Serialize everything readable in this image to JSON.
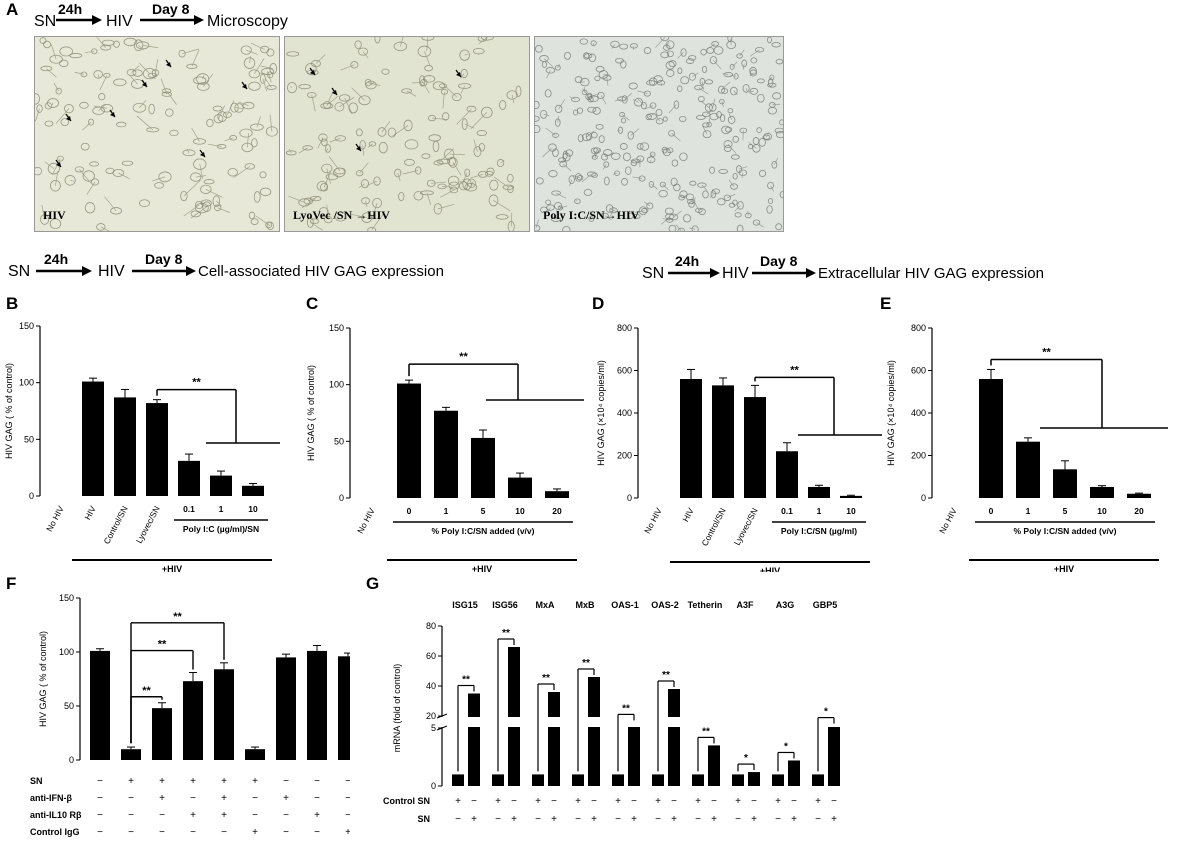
{
  "panel_a": {
    "letter": "A",
    "flow": {
      "sn": "SN",
      "t1": "24h",
      "hiv": "HIV",
      "t2": "Day 8",
      "end": "Microscopy"
    },
    "images": [
      {
        "caption": "HIV",
        "tint": "#e7e8d8"
      },
      {
        "caption": "LyoVec /SN",
        "caption_end": "HIV",
        "tint": "#e2e4d2"
      },
      {
        "caption": "Poly I:C/SN",
        "caption_end": "HIV",
        "tint": "#dfe3de"
      }
    ]
  },
  "flow_cell": {
    "sn": "SN",
    "t1": "24h",
    "hiv": "HIV",
    "t2": "Day 8",
    "end": "Cell-associated HIV GAG expression"
  },
  "flow_extra": {
    "sn": "SN",
    "t1": "24h",
    "hiv": "HIV",
    "t2": "Day 8",
    "end": "Extracellular HIV GAG expression"
  },
  "chart_data": [
    {
      "panel": "B",
      "type": "bar",
      "ylabel": "HIV GAG ( % of control)",
      "ylim": [
        0,
        150
      ],
      "yticks": [
        0,
        50,
        100,
        150
      ],
      "categories": [
        "No HIV",
        "HIV",
        "Control/SN",
        "Lyovec/SN",
        "0.1",
        "1",
        "10"
      ],
      "values": [
        0,
        101,
        87,
        82,
        31,
        18,
        9
      ],
      "errors": [
        0,
        3,
        7,
        3,
        6,
        4,
        2
      ],
      "group_label": "Poly I:C (µg/ml)/SN",
      "footer": "+HIV",
      "significance": "**"
    },
    {
      "panel": "C",
      "type": "bar",
      "ylabel": "HIV GAG ( % of control)",
      "ylim": [
        0,
        150
      ],
      "yticks": [
        0,
        50,
        100,
        150
      ],
      "categories": [
        "No HIV",
        "0",
        "1",
        "5",
        "10",
        "20"
      ],
      "values": [
        0,
        101,
        77,
        53,
        18,
        6
      ],
      "errors": [
        0,
        3,
        3,
        7,
        4,
        2
      ],
      "group_label": "% Poly I:C/SN added (v/v)",
      "footer": "+HIV",
      "significance": "**"
    },
    {
      "panel": "D",
      "type": "bar",
      "ylabel": "HIV GAG (×10⁴ copies/ml)",
      "ylim": [
        0,
        800
      ],
      "yticks": [
        0,
        200,
        400,
        600,
        800
      ],
      "categories": [
        "No HIV",
        "HIV",
        "Control/SN",
        "Lyovec/SN",
        "0.1",
        "1",
        "10"
      ],
      "values": [
        0,
        560,
        530,
        475,
        220,
        52,
        10
      ],
      "errors": [
        0,
        45,
        35,
        55,
        40,
        8,
        3
      ],
      "group_label": "Poly I:C/SN  (µg/ml)",
      "footer": "+HIV",
      "significance": "**"
    },
    {
      "panel": "E",
      "type": "bar",
      "ylabel": "HIV GAG (×10⁴ copies/ml)",
      "ylim": [
        0,
        800
      ],
      "yticks": [
        0,
        200,
        400,
        600,
        800
      ],
      "categories": [
        "No HIV",
        "0",
        "1",
        "5",
        "10",
        "20"
      ],
      "values": [
        0,
        560,
        265,
        135,
        52,
        20
      ],
      "errors": [
        0,
        45,
        18,
        40,
        6,
        3
      ],
      "group_label": "% Poly I:C/SN added (v/v)",
      "footer": "+HIV",
      "significance": "**"
    },
    {
      "panel": "F",
      "type": "bar",
      "ylabel": "HIV GAG ( % of control)",
      "ylim": [
        0,
        150
      ],
      "yticks": [
        0,
        50,
        100,
        150
      ],
      "values": [
        101,
        10,
        48,
        73,
        84,
        10,
        95,
        101,
        96
      ],
      "errors": [
        2,
        2,
        5,
        8,
        6,
        2,
        3,
        5,
        3
      ],
      "rows": [
        {
          "label": "SN",
          "marks": [
            "−",
            "+",
            "+",
            "+",
            "+",
            "+",
            "−",
            "−",
            "−"
          ]
        },
        {
          "label": "anti-IFN-β",
          "marks": [
            "−",
            "−",
            "+",
            "−",
            "+",
            "−",
            "+",
            "−",
            "−"
          ]
        },
        {
          "label": "anti-IL10 Rβ",
          "marks": [
            "−",
            "−",
            "−",
            "+",
            "+",
            "−",
            "−",
            "+",
            "−"
          ]
        },
        {
          "label": "Control IgG",
          "marks": [
            "−",
            "−",
            "−",
            "−",
            "−",
            "+",
            "−",
            "−",
            "+"
          ]
        }
      ],
      "significance": "**"
    },
    {
      "panel": "G",
      "type": "bar",
      "ylabel": "mRNA (fold of control)",
      "yticks_lower": [
        0,
        5
      ],
      "yticks_upper": [
        20,
        40,
        60,
        80
      ],
      "genes": [
        "ISG15",
        "ISG56",
        "MxA",
        "MxB",
        "OAS-1",
        "OAS-2",
        "Tetherin",
        "A3F",
        "A3G",
        "GBP5"
      ],
      "control_values": [
        1,
        1,
        1,
        1,
        1,
        1,
        1,
        1,
        1,
        1
      ],
      "sn_values": [
        35,
        66,
        36,
        46,
        12,
        38,
        3.5,
        1.2,
        2.2,
        8
      ],
      "significance": [
        "**",
        "**",
        "**",
        "**",
        "**",
        "**",
        "**",
        "*",
        "*",
        "*"
      ],
      "rows": [
        {
          "label": "Control SN",
          "marks": [
            "+",
            "−",
            "+",
            "−",
            "+",
            "−",
            "+",
            "−",
            "+",
            "−",
            "+",
            "−",
            "+",
            "−",
            "+",
            "−",
            "+",
            "−",
            "+",
            "−"
          ]
        },
        {
          "label": "SN",
          "marks": [
            "−",
            "+",
            "−",
            "+",
            "−",
            "+",
            "−",
            "+",
            "−",
            "+",
            "−",
            "+",
            "−",
            "+",
            "−",
            "+",
            "−",
            "+",
            "−",
            "+"
          ]
        }
      ]
    }
  ]
}
